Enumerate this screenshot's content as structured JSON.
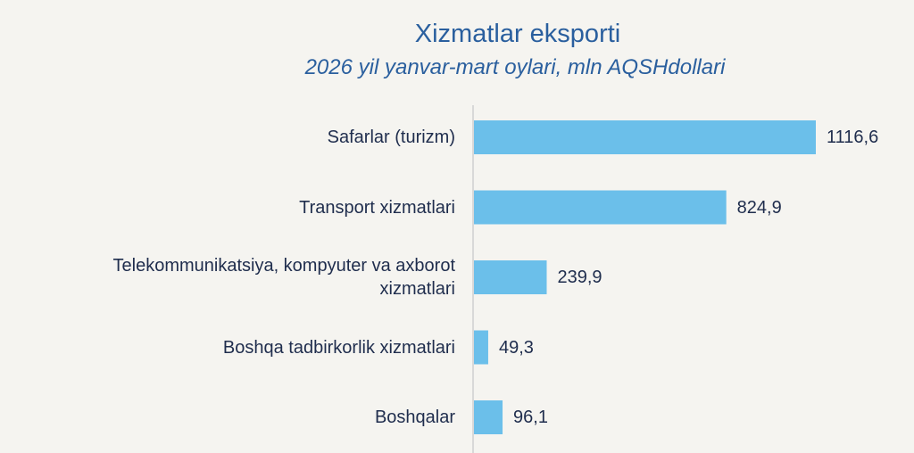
{
  "chart_data": {
    "type": "bar",
    "orientation": "horizontal",
    "title": "Xizmatlar eksporti",
    "subtitle": "2026 yil yanvar-mart oylari, mln AQSHdollari",
    "categories": [
      "Safarlar (turizm)",
      "Transport xizmatlari",
      "Telekommunikatsiya, kompyuter va axborot xizmatlari",
      "Boshqa tadbirkorlik xizmatlari",
      "Boshqalar"
    ],
    "values": [
      1116.6,
      824.9,
      239.9,
      49.3,
      96.1
    ],
    "value_labels": [
      "1116,6",
      "824,9",
      "239,9",
      "49,3",
      "96,1"
    ],
    "color": "#6bbfea"
  }
}
